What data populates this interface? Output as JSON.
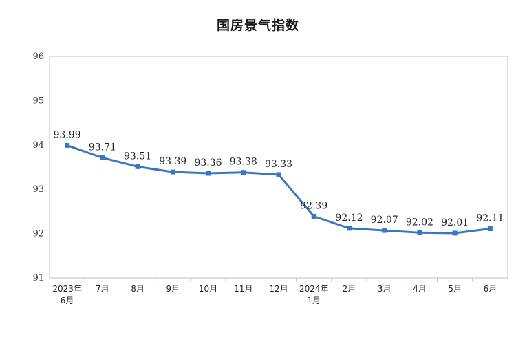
{
  "chart_data": {
    "type": "line",
    "title": "国房景气指数",
    "xlabel": "",
    "ylabel": "",
    "ylim": [
      91,
      96
    ],
    "yticks": [
      "91",
      "92",
      "93",
      "94",
      "95",
      "96"
    ],
    "categories": [
      [
        "2023年",
        "6月"
      ],
      [
        "7月"
      ],
      [
        "8月"
      ],
      [
        "9月"
      ],
      [
        "10月"
      ],
      [
        "11月"
      ],
      [
        "12月"
      ],
      [
        "2024年",
        "1月"
      ],
      [
        "2月"
      ],
      [
        "3月"
      ],
      [
        "4月"
      ],
      [
        "5月"
      ],
      [
        "6月"
      ]
    ],
    "series": [
      {
        "values": [
          93.99,
          93.71,
          93.51,
          93.39,
          93.36,
          93.38,
          93.33,
          92.39,
          92.12,
          92.07,
          92.02,
          92.01,
          92.11
        ],
        "labels": [
          "93.99",
          "93.71",
          "93.51",
          "93.39",
          "93.36",
          "93.38",
          "93.33",
          "92.39",
          "92.12",
          "92.07",
          "92.02",
          "92.01",
          "92.11"
        ],
        "color": "#3a76c4"
      }
    ],
    "grid": false,
    "legend": "none"
  }
}
